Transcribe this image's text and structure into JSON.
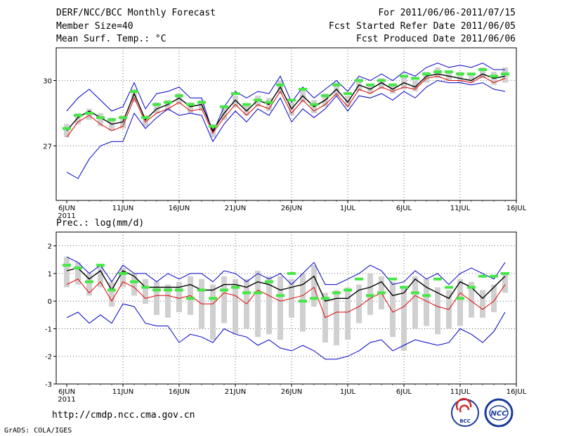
{
  "header": {
    "title": "DERF/NCC/BCC Monthly Forecast",
    "member_size": "Member Size=40",
    "variable": "Mean Surf. Temp.: °C",
    "period": "For 2011/06/06-2011/07/15",
    "started": "Fcst Started Refer Date 2011/06/05",
    "produced": "Fcst Produced Date 2011/06/06"
  },
  "footer": {
    "url": "http://cmdp.ncc.cma.gov.cn",
    "credit": "GrADS: COLA/IGES",
    "logo_bcc": "BCC",
    "logo_ncc": "NCC"
  },
  "x_axis": {
    "labels": [
      "6JUN",
      "11JUN",
      "16JUN",
      "21JUN",
      "26JUN",
      "1JUL",
      "6JUL",
      "11JUL",
      "16JUL"
    ],
    "year": "2011"
  },
  "chart_data": [
    {
      "type": "line",
      "title": "Mean Surf. Temp.: °C",
      "ylim": [
        24.5,
        31.5
      ],
      "yticks": [
        27,
        30
      ],
      "x_days": [
        1,
        2,
        3,
        4,
        5,
        6,
        7,
        8,
        9,
        10,
        11,
        12,
        13,
        14,
        15,
        16,
        17,
        18,
        19,
        20,
        21,
        22,
        23,
        24,
        25,
        26,
        27,
        28,
        29,
        30,
        31,
        32,
        33,
        34,
        35,
        36,
        37,
        38,
        39,
        40
      ],
      "series": [
        {
          "name": "max",
          "color": "#0000c8",
          "values": [
            28.6,
            29.2,
            29.6,
            29.1,
            28.6,
            28.8,
            29.9,
            28.7,
            29.4,
            29.5,
            29.7,
            29.2,
            29.2,
            27.6,
            28.8,
            29.5,
            29.2,
            29.5,
            29.4,
            30.2,
            29.0,
            29.7,
            29.2,
            29.6,
            30.0,
            29.5,
            30.2,
            30.0,
            30.3,
            30.0,
            30.4,
            30.2,
            30.6,
            30.8,
            30.6,
            30.7,
            30.6,
            30.8,
            30.5,
            30.5
          ]
        },
        {
          "name": "ens_mean",
          "color": "#000000",
          "values": [
            27.7,
            28.3,
            28.6,
            28.3,
            28.0,
            28.1,
            29.4,
            28.2,
            28.7,
            28.9,
            29.2,
            28.8,
            28.9,
            27.7,
            28.5,
            29.1,
            28.6,
            29.1,
            28.9,
            29.7,
            28.7,
            29.3,
            28.8,
            29.1,
            29.6,
            29.0,
            29.8,
            29.6,
            29.9,
            29.6,
            29.9,
            29.7,
            30.2,
            30.3,
            30.2,
            30.1,
            30.0,
            30.3,
            30.1,
            30.2
          ]
        },
        {
          "name": "median",
          "color": "#e00000",
          "values": [
            27.4,
            28.1,
            28.4,
            28.0,
            27.7,
            27.9,
            29.2,
            28.1,
            28.5,
            28.7,
            29.0,
            28.6,
            28.7,
            27.6,
            28.3,
            28.9,
            28.4,
            28.9,
            28.7,
            29.5,
            28.5,
            29.1,
            28.6,
            28.9,
            29.4,
            28.8,
            29.6,
            29.4,
            29.7,
            29.5,
            29.7,
            29.6,
            30.1,
            30.2,
            30.0,
            30.0,
            29.9,
            30.2,
            29.9,
            30.1
          ]
        },
        {
          "name": "min",
          "color": "#0000c8",
          "values": [
            25.8,
            25.5,
            26.4,
            27.0,
            27.2,
            27.2,
            28.5,
            27.8,
            28.3,
            28.7,
            28.4,
            28.5,
            28.4,
            27.2,
            28.0,
            28.6,
            28.1,
            28.7,
            28.4,
            29.2,
            28.1,
            28.7,
            28.3,
            28.7,
            29.3,
            28.6,
            29.3,
            29.2,
            29.4,
            29.1,
            29.5,
            29.2,
            29.7,
            30.0,
            29.9,
            29.9,
            29.8,
            29.9,
            29.6,
            29.5
          ]
        }
      ],
      "boxes_low": [
        27.4,
        28.0,
        28.2,
        27.9,
        27.7,
        27.8,
        29.0,
        27.9,
        28.5,
        28.6,
        28.9,
        28.5,
        28.6,
        27.4,
        28.2,
        28.8,
        28.4,
        28.8,
        28.6,
        29.4,
        28.4,
        29.0,
        28.5,
        28.8,
        29.3,
        28.8,
        29.5,
        29.4,
        29.6,
        29.4,
        29.6,
        29.5,
        29.9,
        30.1,
        30.0,
        29.9,
        29.9,
        30.1,
        29.8,
        29.9
      ],
      "boxes_high": [
        28.0,
        28.5,
        28.7,
        28.5,
        28.3,
        28.4,
        29.6,
        28.4,
        29.0,
        29.1,
        29.4,
        29.0,
        29.1,
        28.0,
        28.8,
        29.3,
        28.9,
        29.3,
        29.2,
        30.0,
        29.0,
        29.6,
        29.1,
        29.4,
        29.9,
        29.3,
        30.0,
        29.8,
        30.1,
        29.8,
        30.2,
        30.0,
        30.4,
        30.6,
        30.4,
        30.4,
        30.3,
        30.6,
        30.4,
        30.6
      ],
      "observed_green": [
        27.8,
        28.4,
        28.5,
        28.3,
        28.2,
        28.3,
        29.5,
        28.3,
        28.9,
        29.0,
        29.3,
        28.9,
        29.0,
        27.9,
        28.8,
        29.4,
        28.9,
        29.1,
        29.0,
        29.8,
        29.1,
        29.6,
        28.9,
        29.3,
        29.8,
        29.4,
        30.0,
        29.8,
        30.0,
        29.8,
        30.2,
        30.1,
        30.3,
        30.4,
        30.4,
        30.3,
        30.3,
        30.5,
        30.2,
        30.3
      ]
    },
    {
      "type": "line",
      "title": "Prec.: log(mm/d)",
      "ylim": [
        -3,
        2.5
      ],
      "yticks": [
        -3,
        -2,
        -1,
        0,
        1,
        2
      ],
      "x_days": [
        1,
        2,
        3,
        4,
        5,
        6,
        7,
        8,
        9,
        10,
        11,
        12,
        13,
        14,
        15,
        16,
        17,
        18,
        19,
        20,
        21,
        22,
        23,
        24,
        25,
        26,
        27,
        28,
        29,
        30,
        31,
        32,
        33,
        34,
        35,
        36,
        37,
        38,
        39,
        40
      ],
      "series": [
        {
          "name": "max",
          "color": "#0000c8",
          "values": [
            1.6,
            1.4,
            1.0,
            1.3,
            0.7,
            1.3,
            1.0,
            1.0,
            0.7,
            1.0,
            0.8,
            1.0,
            1.0,
            0.7,
            1.1,
            1.0,
            0.7,
            1.0,
            0.8,
            1.0,
            0.6,
            1.0,
            1.4,
            0.6,
            0.6,
            0.8,
            1.0,
            1.3,
            1.1,
            0.6,
            0.7,
            1.1,
            0.8,
            1.0,
            0.6,
            1.0,
            1.2,
            1.0,
            0.8,
            1.4
          ]
        },
        {
          "name": "ens_mean",
          "color": "#000000",
          "values": [
            1.1,
            1.2,
            0.8,
            1.1,
            0.4,
            1.1,
            0.9,
            0.5,
            0.5,
            0.5,
            0.5,
            0.6,
            0.4,
            0.4,
            0.6,
            0.6,
            0.5,
            0.7,
            0.6,
            0.4,
            0.5,
            0.6,
            0.9,
            0.0,
            0.1,
            0.1,
            0.4,
            0.5,
            0.7,
            0.2,
            0.3,
            0.8,
            0.5,
            0.3,
            0.1,
            0.7,
            0.5,
            0.1,
            0.5,
            0.9
          ]
        },
        {
          "name": "median",
          "color": "#e00000",
          "values": [
            0.6,
            0.8,
            0.3,
            0.7,
            0.0,
            0.7,
            0.5,
            0.1,
            0.2,
            0.2,
            0.1,
            0.2,
            -0.1,
            -0.1,
            0.3,
            0.2,
            -0.1,
            0.4,
            0.2,
            0.0,
            0.1,
            0.2,
            0.5,
            -0.6,
            -0.4,
            -0.4,
            -0.2,
            0.1,
            0.3,
            -0.4,
            -0.2,
            0.2,
            0.0,
            -0.2,
            -0.3,
            0.3,
            0.0,
            -0.3,
            0.0,
            0.6
          ]
        },
        {
          "name": "min",
          "color": "#0000c8",
          "values": [
            -0.6,
            -0.4,
            -0.8,
            -0.5,
            -0.8,
            -0.1,
            -0.2,
            -0.8,
            -0.9,
            -0.9,
            -1.5,
            -1.2,
            -1.3,
            -1.5,
            -1.0,
            -1.2,
            -1.3,
            -1.6,
            -1.4,
            -1.7,
            -1.8,
            -1.6,
            -1.8,
            -2.1,
            -2.1,
            -2.0,
            -1.8,
            -1.5,
            -1.4,
            -1.8,
            -1.6,
            -1.4,
            -1.5,
            -1.6,
            -1.5,
            -1.0,
            -1.2,
            -1.5,
            -1.1,
            -0.4
          ]
        }
      ],
      "boxes_low": [
        0.5,
        0.6,
        0.2,
        0.5,
        -0.2,
        0.5,
        0.2,
        -0.1,
        -0.5,
        -0.6,
        -0.4,
        -0.5,
        -1.0,
        -1.4,
        -0.8,
        -1.2,
        -1.0,
        -1.3,
        -1.2,
        -1.4,
        -0.6,
        -1.1,
        -0.2,
        -1.5,
        -1.6,
        -1.4,
        -0.8,
        -0.5,
        -0.3,
        -1.3,
        -1.8,
        -1.0,
        -0.9,
        -1.2,
        -1.0,
        -0.9,
        -0.6,
        -0.6,
        -0.4,
        0.3
      ],
      "boxes_high": [
        1.6,
        1.4,
        1.0,
        1.3,
        0.7,
        1.2,
        1.0,
        0.8,
        0.7,
        0.6,
        0.7,
        0.9,
        0.8,
        0.6,
        0.9,
        0.8,
        0.8,
        1.1,
        0.9,
        0.9,
        0.8,
        1.0,
        1.3,
        0.3,
        0.4,
        0.5,
        0.6,
        1.0,
        0.9,
        0.7,
        0.5,
        0.9,
        0.8,
        0.5,
        0.4,
        0.8,
        0.7,
        0.4,
        0.6,
        1.0
      ],
      "observed_green": [
        1.3,
        1.2,
        0.7,
        1.3,
        0.4,
        1.0,
        0.7,
        0.5,
        0.4,
        0.4,
        0.4,
        0.1,
        0.4,
        0.1,
        0.4,
        0.5,
        0.3,
        0.3,
        0.7,
        0.2,
        1.0,
        0.0,
        0.1,
        0.1,
        0.3,
        0.4,
        0.8,
        0.2,
        0.3,
        0.8,
        0.5,
        0.3,
        0.2,
        0.8,
        0.5,
        0.1,
        0.5,
        0.9,
        0.9,
        1.0
      ]
    }
  ]
}
